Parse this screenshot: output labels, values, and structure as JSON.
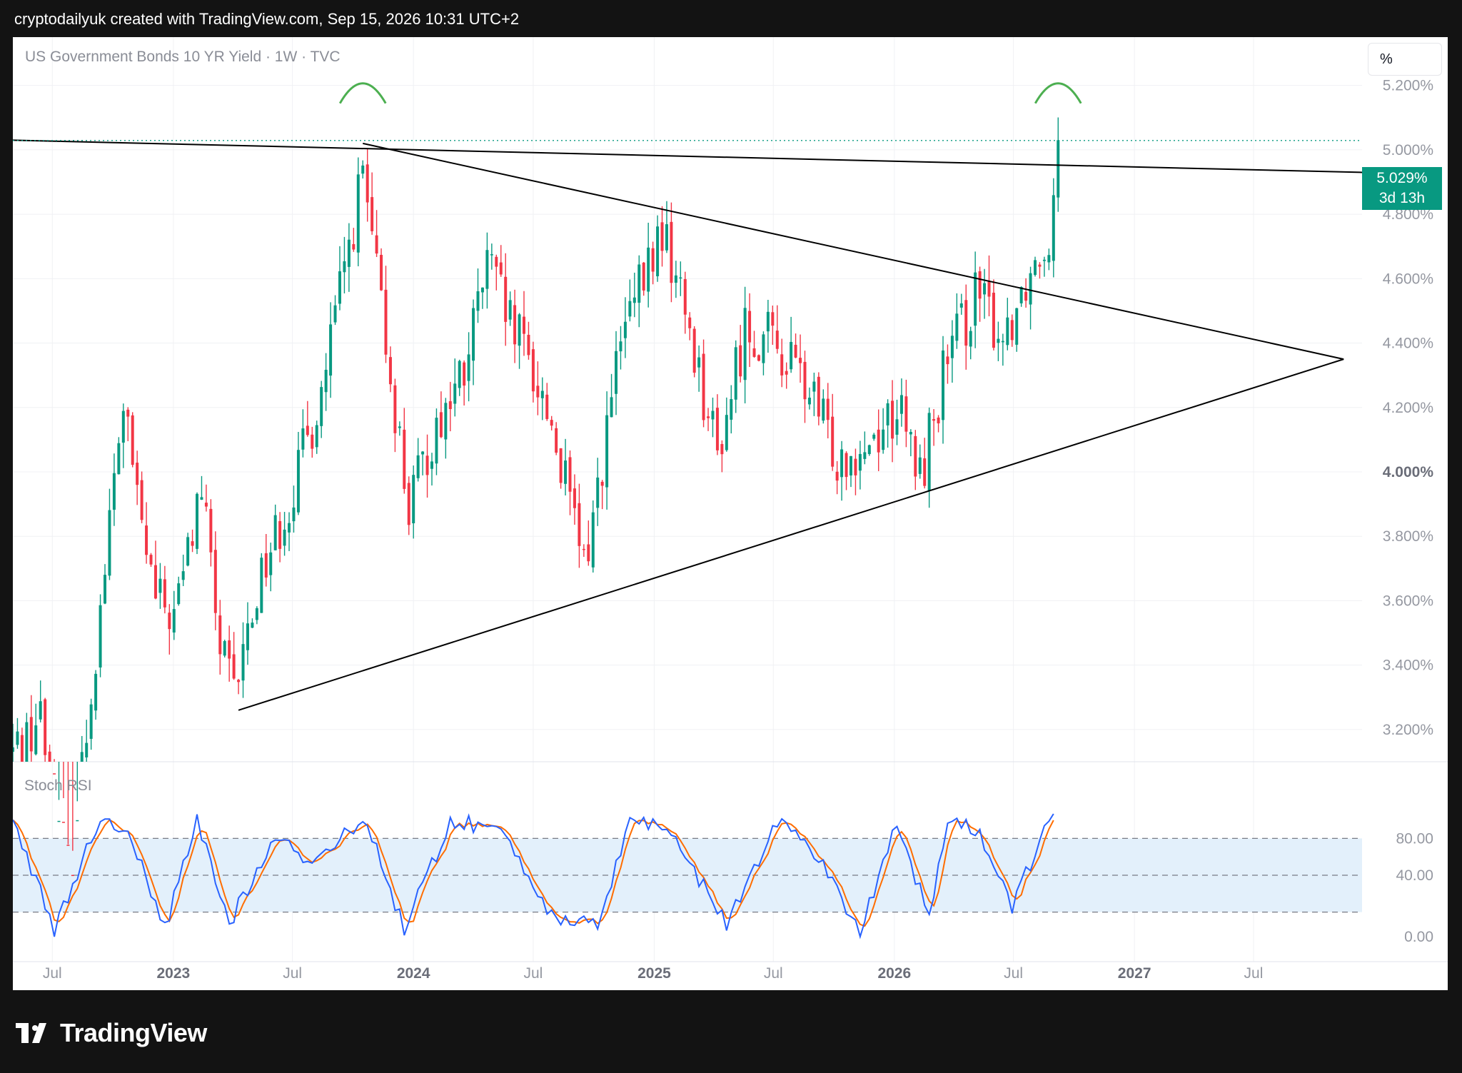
{
  "header": {
    "attribution": "cryptodailyuk created with TradingView.com, Sep 15, 2026 10:31 UTC+2"
  },
  "chart": {
    "symbol_title": "US Government Bonds 10 YR Yield · 1W · TVC",
    "unit_button": "%",
    "last_price": "5.029%",
    "countdown": "3d 13h",
    "indicator_label": "Stoch RSI",
    "brand": "TradingView"
  },
  "colors": {
    "up": "#089981",
    "down": "#f23645",
    "k_line": "#2962ff",
    "d_line": "#ff6d00",
    "stoch_band": "#e3f0fb",
    "arc": "#4caf50",
    "trendline": "#000000"
  },
  "chart_data": {
    "type": "candlestick",
    "title": "US Government Bonds 10 YR Yield · 1W · TVC",
    "x_tick_labels": [
      "Jul",
      "2023",
      "Jul",
      "2024",
      "Jul",
      "2025",
      "Jul",
      "2026",
      "Jul",
      "2027",
      "Jul"
    ],
    "y_tick_labels": [
      "3.200%",
      "3.400%",
      "3.600%",
      "3.800%",
      "4.000%",
      "4.200%",
      "4.400%",
      "4.600%",
      "4.800%",
      "5.000%",
      "5.200%"
    ],
    "y_range": [
      3.1,
      5.35
    ],
    "x_range_dates": [
      "2022-05-02",
      "2027-12-13"
    ],
    "grid": true,
    "price_anchors_weekly_close": [
      [
        "2022-05-02",
        3.13
      ],
      [
        "2022-06-13",
        3.24
      ],
      [
        "2022-07-25",
        2.7
      ],
      [
        "2022-09-05",
        3.45
      ],
      [
        "2022-10-17",
        4.22
      ],
      [
        "2022-11-07",
        3.9
      ],
      [
        "2022-12-05",
        3.6
      ],
      [
        "2023-01-02",
        3.55
      ],
      [
        "2023-02-13",
        3.95
      ],
      [
        "2023-03-13",
        3.45
      ],
      [
        "2023-04-03",
        3.3
      ],
      [
        "2023-05-15",
        3.7
      ],
      [
        "2023-07-03",
        3.95
      ],
      [
        "2023-08-14",
        4.25
      ],
      [
        "2023-09-25",
        4.7
      ],
      [
        "2023-10-16",
        4.92
      ],
      [
        "2023-11-06",
        4.6
      ],
      [
        "2023-12-04",
        4.2
      ],
      [
        "2023-12-25",
        3.88
      ],
      [
        "2024-02-05",
        4.15
      ],
      [
        "2024-03-18",
        4.3
      ],
      [
        "2024-04-22",
        4.65
      ],
      [
        "2024-05-27",
        4.45
      ],
      [
        "2024-06-24",
        4.35
      ],
      [
        "2024-07-29",
        4.15
      ],
      [
        "2024-09-16",
        3.7
      ],
      [
        "2024-10-07",
        3.95
      ],
      [
        "2024-11-11",
        4.4
      ],
      [
        "2025-01-13",
        4.75
      ],
      [
        "2025-02-24",
        4.45
      ],
      [
        "2025-04-07",
        4.05
      ],
      [
        "2025-05-19",
        4.45
      ],
      [
        "2025-06-30",
        4.4
      ],
      [
        "2025-08-11",
        4.3
      ],
      [
        "2025-10-06",
        4.05
      ],
      [
        "2025-11-24",
        4.1
      ],
      [
        "2026-01-05",
        4.2
      ],
      [
        "2026-02-09",
        3.98
      ],
      [
        "2026-03-16",
        4.3
      ],
      [
        "2026-05-04",
        4.55
      ],
      [
        "2026-06-15",
        4.42
      ],
      [
        "2026-07-20",
        4.6
      ],
      [
        "2026-08-24",
        4.75
      ],
      [
        "2026-09-07",
        5.03
      ]
    ],
    "annotations": {
      "resistance_line": [
        [
          "2022-05-02",
          5.03
        ],
        [
          "2027-12-13",
          4.93
        ]
      ],
      "descending_trendline": [
        [
          "2023-10-16",
          5.02
        ],
        [
          "2027-11-15",
          4.35
        ]
      ],
      "ascending_trendline": [
        [
          "2023-04-10",
          3.26
        ],
        [
          "2027-11-15",
          4.35
        ]
      ],
      "dotted_last_price": 5.029,
      "double_top_arcs": [
        "2023-10-16",
        "2026-09-07"
      ]
    },
    "stoch_rsi": {
      "y_tick_labels": [
        "0.00",
        "40.00",
        "80.00"
      ],
      "y_range": [
        0,
        100
      ],
      "band": [
        20,
        80
      ],
      "mid": 50,
      "k_anchors": [
        [
          "2022-05-02",
          100
        ],
        [
          "2022-06-06",
          45
        ],
        [
          "2022-07-04",
          5
        ],
        [
          "2022-09-05",
          90
        ],
        [
          "2022-10-24",
          90
        ],
        [
          "2022-12-19",
          5
        ],
        [
          "2023-02-06",
          95
        ],
        [
          "2023-03-27",
          10
        ],
        [
          "2023-06-05",
          85
        ],
        [
          "2023-07-24",
          60
        ],
        [
          "2023-10-23",
          95
        ],
        [
          "2023-12-18",
          5
        ],
        [
          "2024-02-26",
          95
        ],
        [
          "2024-05-20",
          85
        ],
        [
          "2024-08-05",
          10
        ],
        [
          "2024-10-07",
          10
        ],
        [
          "2024-11-25",
          95
        ],
        [
          "2025-01-20",
          90
        ],
        [
          "2025-04-21",
          10
        ],
        [
          "2025-07-07",
          95
        ],
        [
          "2025-09-01",
          70
        ],
        [
          "2025-11-10",
          5
        ],
        [
          "2026-01-05",
          95
        ],
        [
          "2026-02-23",
          15
        ],
        [
          "2026-03-23",
          95
        ],
        [
          "2026-05-11",
          85
        ],
        [
          "2026-06-29",
          25
        ],
        [
          "2026-08-31",
          100
        ]
      ]
    }
  }
}
